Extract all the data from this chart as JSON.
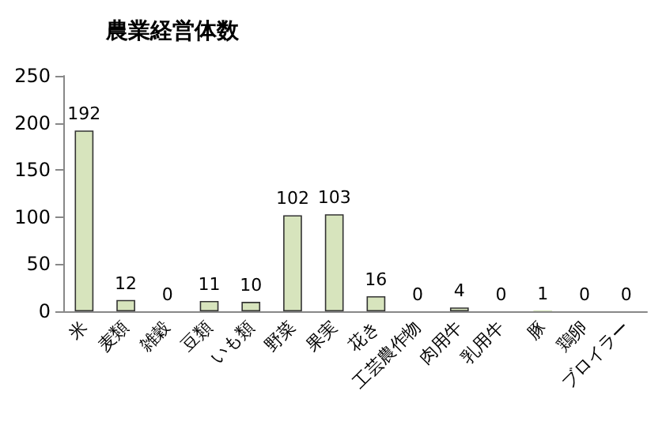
{
  "chart_data": {
    "type": "bar",
    "title": "農業経営体数",
    "categories": [
      "米",
      "麦類",
      "雑穀",
      "豆類",
      "いも類",
      "野菜",
      "果実",
      "花き",
      "工芸農作物",
      "肉用牛",
      "乳用牛",
      "豚",
      "鶏卵",
      "ブロイラー"
    ],
    "values": [
      192,
      12,
      0,
      11,
      10,
      102,
      103,
      16,
      0,
      4,
      0,
      1,
      0,
      0
    ],
    "color": "#d7e4bd",
    "ylim": [
      0,
      250
    ],
    "yticks": [
      0,
      50,
      100,
      150,
      200,
      250
    ],
    "grid": false,
    "data_labels": true
  }
}
